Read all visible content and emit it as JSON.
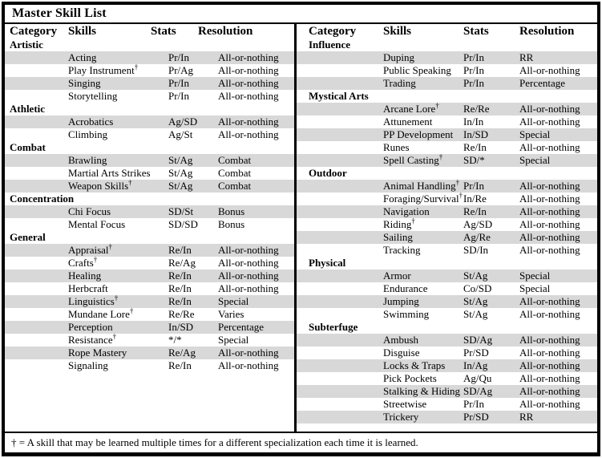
{
  "title": "Master Skill List",
  "columns": [
    "Category",
    "Skills",
    "Stats",
    "Resolution"
  ],
  "footnote": "† =  A skill that may be learned multiple times for a different specialization each time it is learned.",
  "colors": {
    "stripe": "#d8d8d8",
    "border": "#000000",
    "background": "#ffffff",
    "text": "#000000"
  },
  "tables": [
    {
      "side": "left",
      "categories": [
        {
          "name": "Artistic",
          "skills": [
            {
              "name": "Acting",
              "dagger": "",
              "stats": "Pr/In",
              "resolution": "All-or-nothing"
            },
            {
              "name": "Play Instrument",
              "dagger": "†",
              "stats": "Pr/Ag",
              "resolution": "All-or-nothing"
            },
            {
              "name": "Singing",
              "dagger": "",
              "stats": "Pr/In",
              "resolution": "All-or-nothing"
            },
            {
              "name": "Storytelling",
              "dagger": "",
              "stats": "Pr/In",
              "resolution": "All-or-nothing"
            }
          ]
        },
        {
          "name": "Athletic",
          "skills": [
            {
              "name": "Acrobatics",
              "dagger": "",
              "stats": "Ag/SD",
              "resolution": "All-or-nothing"
            },
            {
              "name": "Climbing",
              "dagger": "",
              "stats": "Ag/St",
              "resolution": "All-or-nothing"
            }
          ]
        },
        {
          "name": "Combat",
          "skills": [
            {
              "name": "Brawling",
              "dagger": "",
              "stats": "St/Ag",
              "resolution": "Combat"
            },
            {
              "name": "Martial Arts Strikes",
              "dagger": "",
              "stats": "St/Ag",
              "resolution": "Combat"
            },
            {
              "name": "Weapon Skills",
              "dagger": "†",
              "stats": "St/Ag",
              "resolution": "Combat"
            }
          ]
        },
        {
          "name": "Concentration",
          "skills": [
            {
              "name": "Chi Focus",
              "dagger": "",
              "stats": "SD/St",
              "resolution": "Bonus"
            },
            {
              "name": "Mental Focus",
              "dagger": "",
              "stats": "SD/SD",
              "resolution": "Bonus"
            }
          ]
        },
        {
          "name": "General",
          "skills": [
            {
              "name": "Appraisal",
              "dagger": "†",
              "stats": "Re/In",
              "resolution": "All-or-nothing"
            },
            {
              "name": "Crafts",
              "dagger": "†",
              "stats": "Re/Ag",
              "resolution": "All-or-nothing"
            },
            {
              "name": "Healing",
              "dagger": "",
              "stats": "Re/In",
              "resolution": "All-or-nothing"
            },
            {
              "name": "Herbcraft",
              "dagger": "",
              "stats": "Re/In",
              "resolution": "All-or-nothing"
            },
            {
              "name": "Linguistics",
              "dagger": "†",
              "stats": "Re/In",
              "resolution": "Special"
            },
            {
              "name": "Mundane Lore",
              "dagger": "†",
              "stats": "Re/Re",
              "resolution": "Varies"
            },
            {
              "name": "Perception",
              "dagger": "",
              "stats": "In/SD",
              "resolution": "Percentage"
            },
            {
              "name": "Resistance",
              "dagger": "†",
              "stats": "*/*",
              "resolution": "Special"
            },
            {
              "name": "Rope Mastery",
              "dagger": "",
              "stats": "Re/Ag",
              "resolution": "All-or-nothing"
            },
            {
              "name": "Signaling",
              "dagger": "",
              "stats": "Re/In",
              "resolution": "All-or-nothing"
            }
          ]
        }
      ]
    },
    {
      "side": "right",
      "categories": [
        {
          "name": "Influence",
          "skills": [
            {
              "name": "Duping",
              "dagger": "",
              "stats": "Pr/In",
              "resolution": "RR"
            },
            {
              "name": "Public Speaking",
              "dagger": "",
              "stats": "Pr/In",
              "resolution": "All-or-nothing"
            },
            {
              "name": "Trading",
              "dagger": "",
              "stats": "Pr/In",
              "resolution": "Percentage"
            }
          ]
        },
        {
          "name": "Mystical Arts",
          "skills": [
            {
              "name": "Arcane Lore",
              "dagger": "†",
              "stats": "Re/Re",
              "resolution": "All-or-nothing"
            },
            {
              "name": "Attunement",
              "dagger": "",
              "stats": "In/In",
              "resolution": "All-or-nothing"
            },
            {
              "name": "PP Development",
              "dagger": "",
              "stats": "In/SD",
              "resolution": "Special"
            },
            {
              "name": "Runes",
              "dagger": "",
              "stats": "Re/In",
              "resolution": "All-or-nothing"
            },
            {
              "name": "Spell Casting",
              "dagger": "†",
              "stats": "SD/*",
              "resolution": "Special"
            }
          ]
        },
        {
          "name": "Outdoor",
          "skills": [
            {
              "name": "Animal Handling",
              "dagger": "†",
              "stats": "Pr/In",
              "resolution": "All-or-nothing"
            },
            {
              "name": "Foraging/Survival",
              "dagger": "†",
              "stats": "In/Re",
              "resolution": "All-or-nothing"
            },
            {
              "name": "Navigation",
              "dagger": "",
              "stats": "Re/In",
              "resolution": "All-or-nothing"
            },
            {
              "name": "Riding",
              "dagger": "†",
              "stats": "Ag/SD",
              "resolution": "All-or-nothing"
            },
            {
              "name": "Sailing",
              "dagger": "",
              "stats": "Ag/Re",
              "resolution": "All-or-nothing"
            },
            {
              "name": "Tracking",
              "dagger": "",
              "stats": "SD/In",
              "resolution": "All-or-nothing"
            }
          ]
        },
        {
          "name": "Physical",
          "skills": [
            {
              "name": "Armor",
              "dagger": "",
              "stats": "St/Ag",
              "resolution": "Special"
            },
            {
              "name": "Endurance",
              "dagger": "",
              "stats": "Co/SD",
              "resolution": "Special"
            },
            {
              "name": "Jumping",
              "dagger": "",
              "stats": "St/Ag",
              "resolution": "All-or-nothing"
            },
            {
              "name": "Swimming",
              "dagger": "",
              "stats": "St/Ag",
              "resolution": "All-or-nothing"
            }
          ]
        },
        {
          "name": "Subterfuge",
          "skills": [
            {
              "name": "Ambush",
              "dagger": "",
              "stats": "SD/Ag",
              "resolution": "All-or-nothing"
            },
            {
              "name": "Disguise",
              "dagger": "",
              "stats": "Pr/SD",
              "resolution": "All-or-nothing"
            },
            {
              "name": "Locks & Traps",
              "dagger": "",
              "stats": "In/Ag",
              "resolution": "All-or-nothing"
            },
            {
              "name": "Pick Pockets",
              "dagger": "",
              "stats": "Ag/Qu",
              "resolution": "All-or-nothing"
            },
            {
              "name": "Stalking & Hiding",
              "dagger": "",
              "stats": "SD/Ag",
              "resolution": "All-or-nothing"
            },
            {
              "name": "Streetwise",
              "dagger": "",
              "stats": "Pr/In",
              "resolution": "All-or-nothing"
            },
            {
              "name": "Trickery",
              "dagger": "",
              "stats": "Pr/SD",
              "resolution": "RR"
            }
          ]
        }
      ]
    }
  ]
}
